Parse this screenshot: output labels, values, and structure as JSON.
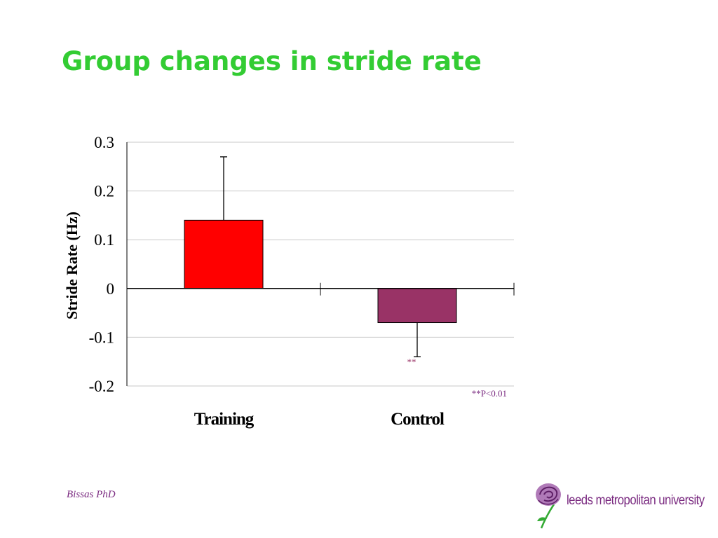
{
  "slide": {
    "title": "Group changes in stride rate",
    "author": "Bissas PhD"
  },
  "logo": {
    "text": "leeds metropolitan university",
    "icon": "rose-icon",
    "color": "#7a2a80"
  },
  "chart_data": {
    "type": "bar",
    "title": "",
    "xlabel": "",
    "ylabel": "Stride Rate (Hz)",
    "ylim": [
      -0.2,
      0.3
    ],
    "yticks": [
      0.3,
      0.2,
      0.1,
      0,
      -0.1,
      -0.2
    ],
    "ytick_labels": [
      "0.3",
      "0.2",
      "0.1",
      "0",
      "-0.1",
      "-0.2"
    ],
    "grid": true,
    "categories": [
      "Training",
      "Control"
    ],
    "values": [
      0.14,
      -0.07
    ],
    "errors": [
      0.13,
      0.07
    ],
    "colors": [
      "#ff0000",
      "#993366"
    ],
    "annotations": [
      {
        "text": "**",
        "category": "Control",
        "color": "#993366"
      }
    ],
    "footnote": "**P<0.01",
    "footnote_color": "#7a2a80"
  }
}
